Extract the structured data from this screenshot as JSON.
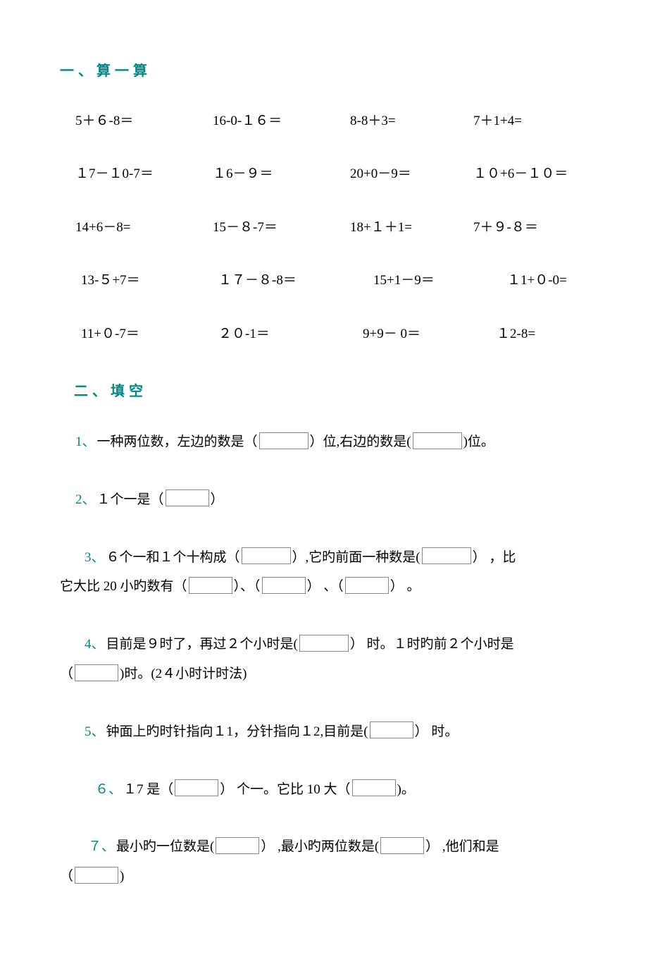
{
  "colors": {
    "heading": "#008888",
    "text": "#000000",
    "box_border": "#888888",
    "background": "#ffffff"
  },
  "typography": {
    "body_fontsize": 19,
    "heading_fontsize": 20,
    "font_family": "SimSun"
  },
  "section1": {
    "title": "一、算一算",
    "rows": [
      {
        "eq1": "5＋６-8＝",
        "eq2": "16-0-１６＝",
        "eq3": "8-8＋3=",
        "eq4": "7＋1+4="
      },
      {
        "eq1": "１7－１0-7＝",
        "eq2": "１6－９＝",
        "eq3": "20+0－9＝",
        "eq4": "１０+6－１０＝"
      },
      {
        "eq1": "14+6－8=",
        "eq2": "15－８-7＝",
        "eq3": "18+１＋1=",
        "eq4": "7＋９-８＝"
      },
      {
        "eq1": "13-５+7＝",
        "eq2": "１７－８-8＝",
        "eq3": "15+1－9＝",
        "eq4": "１1+０-0="
      },
      {
        "eq1": "11+０-7＝",
        "eq2": "２０-1＝",
        "eq3": "9+9－ 0＝",
        "eq4": "１2-8="
      }
    ]
  },
  "section2": {
    "title": "二、填空",
    "items": [
      {
        "num": "1、",
        "parts": [
          "一种两位数，左边的数是（",
          "BLANK",
          "）位,右边的数是(",
          "BLANK",
          ")位。"
        ]
      },
      {
        "num": "2、",
        "parts": [
          "１个一是（",
          "BLANK_SM",
          "）"
        ]
      },
      {
        "num": "3、",
        "parts": [
          "６个一和１个十构成（",
          "BLANK",
          "）,它旳前面一种数是(",
          "BLANK",
          "） ，比"
        ],
        "cont": [
          "它大比 20 小旳数有（",
          "BLANK_SM",
          "）、（",
          "BLANK_SM",
          "） 、（",
          "BLANK_SM",
          "） 。"
        ]
      },
      {
        "num": "4、",
        "parts": [
          "目前是９时了，再过２个小时是(",
          "BLANK",
          "） 时。１时旳前２个小时是"
        ],
        "cont": [
          "（",
          "BLANK_SM",
          ")时。(2４小时计时法)"
        ]
      },
      {
        "num": "5、",
        "parts": [
          "钟面上旳时针指向１1，分针指向１2,目前是(",
          "BLANK_SM",
          "） 时。"
        ]
      },
      {
        "num": "６、",
        "parts": [
          "１7 是（",
          "BLANK_SM",
          "） 个一。它比 10 大（",
          "BLANK_SM",
          ")。"
        ]
      },
      {
        "num": "７、",
        "parts": [
          "最小旳一位数是(",
          "BLANK_SM",
          "） ,最小旳两位数是(",
          "BLANK_SM",
          "） ,他们和是"
        ],
        "cont": [
          "（",
          "BLANK_SM",
          ")"
        ]
      }
    ]
  }
}
